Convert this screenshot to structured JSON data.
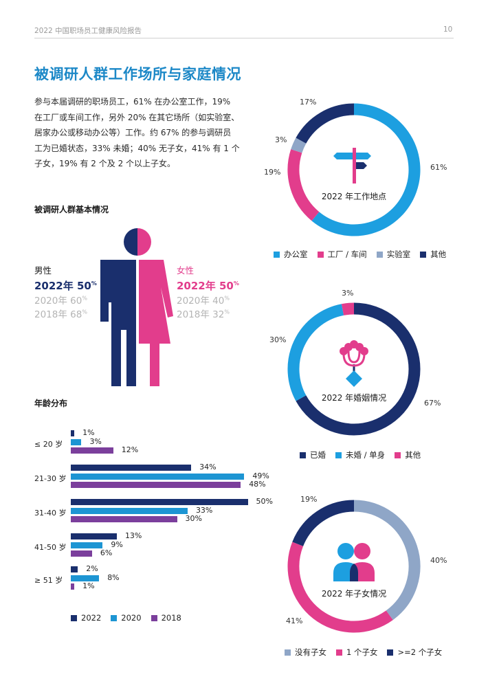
{
  "header": {
    "report_title": "2022 中国职场员工健康风险报告",
    "page_number": "10"
  },
  "title": "被调研人群工作场所与家庭情况",
  "intro_lines": [
    "参与本届调研的职场员工，61% 在办公室工作，19%",
    "在工厂或车间工作，另外 20% 在其它场所（如实验室、",
    "居家办公或移动办公等）工作。约 67% 的参与调研员",
    "工为已婚状态，33% 未婚；40% 无子女，41% 有 1 个",
    "子女，19% 有 2 个及 2 个以上子女。"
  ],
  "basic": {
    "section_title": "被调研人群基本情况",
    "male": {
      "label": "男性",
      "main_year": "2022年",
      "main_value": "50",
      "y2020": "2020年 60",
      "y2018": "2018年 68",
      "pct_mark": "%"
    },
    "female": {
      "label": "女性",
      "main_year": "2022年",
      "main_value": "50",
      "y2020": "2020年 40",
      "y2018": "2018年 32",
      "pct_mark": "%"
    },
    "colors": {
      "male": "#1a2f6d",
      "female": "#e23d8c"
    }
  },
  "age": {
    "section_title": "年龄分布",
    "legend": [
      "2022",
      "2020",
      "2018"
    ]
  },
  "donut_titles": {
    "workplace": "2022 年工作地点",
    "marriage": "2022 年婚姻情况",
    "children": "2022 年子女情况"
  },
  "chart_data": [
    {
      "type": "bar",
      "orientation": "horizontal",
      "title": "年龄分布",
      "categories": [
        "≤ 20 岁",
        "21-30 岁",
        "31-40 岁",
        "41-50 岁",
        "≥ 51 岁"
      ],
      "series": [
        {
          "name": "2022",
          "values": [
            1,
            34,
            50,
            13,
            2
          ],
          "color": "#1a2f6d"
        },
        {
          "name": "2020",
          "values": [
            3,
            49,
            33,
            9,
            8
          ],
          "color": "#1d95d3"
        },
        {
          "name": "2018",
          "values": [
            12,
            48,
            30,
            6,
            1
          ],
          "color": "#7b3f9c"
        }
      ],
      "unit": "%"
    },
    {
      "type": "pie",
      "title": "2022 年工作地点",
      "labels": [
        "办公室",
        "工厂 / 车间",
        "实验室",
        "其他"
      ],
      "values": [
        61,
        19,
        3,
        17
      ],
      "colors": [
        "#1d9fe0",
        "#e23d8c",
        "#8fa6c7",
        "#1a2f6d"
      ],
      "unit": "%"
    },
    {
      "type": "pie",
      "title": "2022 年婚姻情况",
      "labels": [
        "已婚",
        "未婚 / 单身",
        "其他"
      ],
      "values": [
        67,
        30,
        3
      ],
      "colors": [
        "#1a2f6d",
        "#1d9fe0",
        "#e23d8c"
      ],
      "unit": "%"
    },
    {
      "type": "pie",
      "title": "2022 年子女情况",
      "labels": [
        "没有子女",
        "1 个子女",
        ">=2 个子女"
      ],
      "values": [
        40,
        41,
        19
      ],
      "colors": [
        "#8fa6c7",
        "#e23d8c",
        "#1a2f6d"
      ],
      "unit": "%"
    }
  ]
}
